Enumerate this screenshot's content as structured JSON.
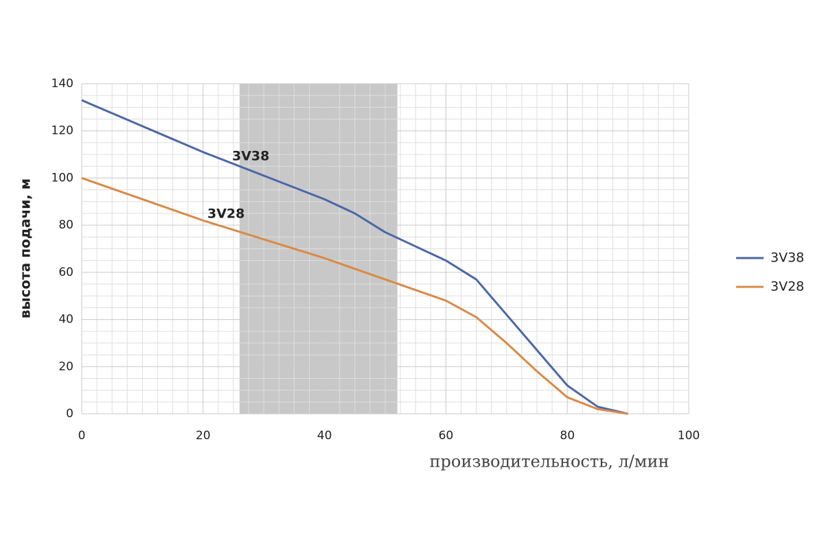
{
  "chart_data": {
    "type": "line",
    "xlabel": "производительность, л/мин",
    "ylabel": "высота подачи, м",
    "xlim": [
      0,
      100
    ],
    "xticks": [
      0,
      20,
      40,
      60,
      80,
      100
    ],
    "ylim": [
      0,
      140
    ],
    "yticks": [
      0,
      20,
      40,
      60,
      80,
      100,
      120,
      140
    ],
    "grid": true,
    "legend": "right",
    "shaded_range": [
      26,
      52
    ],
    "shaded_color": "#c8c8c8",
    "annotations": [
      "3V38",
      "3V28"
    ],
    "series": [
      {
        "name": "3V38",
        "color": "#4a67a8",
        "x": [
          0,
          10,
          20,
          30,
          40,
          45,
          50,
          55,
          60,
          65,
          70,
          75,
          80,
          85,
          90
        ],
        "values": [
          133,
          122,
          111,
          101,
          91,
          85,
          77,
          71,
          65,
          57,
          42,
          27,
          12,
          3,
          0
        ]
      },
      {
        "name": "3V28",
        "color": "#d98a45",
        "x": [
          0,
          10,
          20,
          30,
          40,
          50,
          60,
          65,
          70,
          75,
          80,
          85,
          90
        ],
        "values": [
          100,
          91,
          82,
          74,
          66,
          57,
          48,
          41,
          30,
          18,
          7,
          2,
          0
        ]
      }
    ]
  }
}
